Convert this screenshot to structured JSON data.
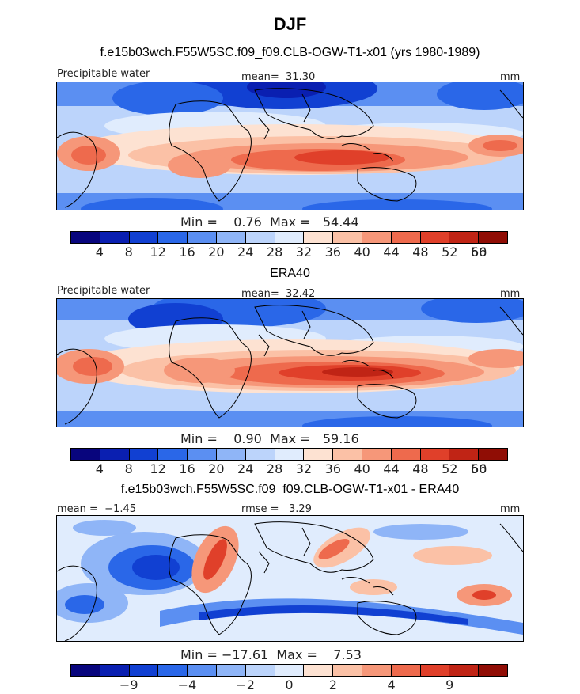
{
  "header": {
    "title": "DJF",
    "subtitle": "f.e15b03wch.F55W5SC.f09_f09.CLB-OGW-T1-x01 (yrs 1980-1989)"
  },
  "panels": [
    {
      "id": "model",
      "heading": "",
      "left_label": "Precipitable water",
      "center_label": "mean=  31.30",
      "right_label": "mm",
      "stats": "Min =    0.76  Max =   54.44",
      "min": 0.76,
      "max": 54.44,
      "mean": 31.3
    },
    {
      "id": "obs",
      "heading": "ERA40",
      "left_label": "Precipitable water",
      "center_label": "mean=  32.42",
      "right_label": "mm",
      "stats": "Min =    0.90  Max =   59.16",
      "min": 0.9,
      "max": 59.16,
      "mean": 32.42
    },
    {
      "id": "diff",
      "heading": "f.e15b03wch.F55W5SC.f09_f09.CLB-OGW-T1-x01 - ERA40",
      "left_label": "mean =  −1.45",
      "center_label": "rmse =   3.29",
      "right_label": "mm",
      "stats": "Min = −17.61  Max =    7.53",
      "min": -17.61,
      "max": 7.53,
      "mean": -1.45,
      "rmse": 3.29
    }
  ],
  "colorbar_abs": {
    "colors": [
      "#08057d",
      "#0a1fb1",
      "#1140d2",
      "#2a67e8",
      "#5b8ff2",
      "#8fb5f7",
      "#bcd4fb",
      "#e0ecfd",
      "#fde2d2",
      "#fbc1a6",
      "#f69779",
      "#ee6a4d",
      "#e0402a",
      "#c02415",
      "#900d05"
    ],
    "tick_labels": [
      "4",
      "8",
      "12",
      "16",
      "20",
      "24",
      "28",
      "32",
      "36",
      "40",
      "44",
      "48",
      "52",
      "56",
      "60"
    ]
  },
  "colorbar_diff": {
    "colors": [
      "#08057d",
      "#0a1fb1",
      "#1140d2",
      "#2a67e8",
      "#5b8ff2",
      "#8fb5f7",
      "#bcd4fb",
      "#e0ecfd",
      "#fde2d2",
      "#fbc1a6",
      "#f69779",
      "#ee6a4d",
      "#e0402a",
      "#c02415",
      "#900d05"
    ],
    "tick_labels": [
      "−9",
      "−4",
      "−2",
      "0",
      "2",
      "4",
      "9"
    ]
  }
}
